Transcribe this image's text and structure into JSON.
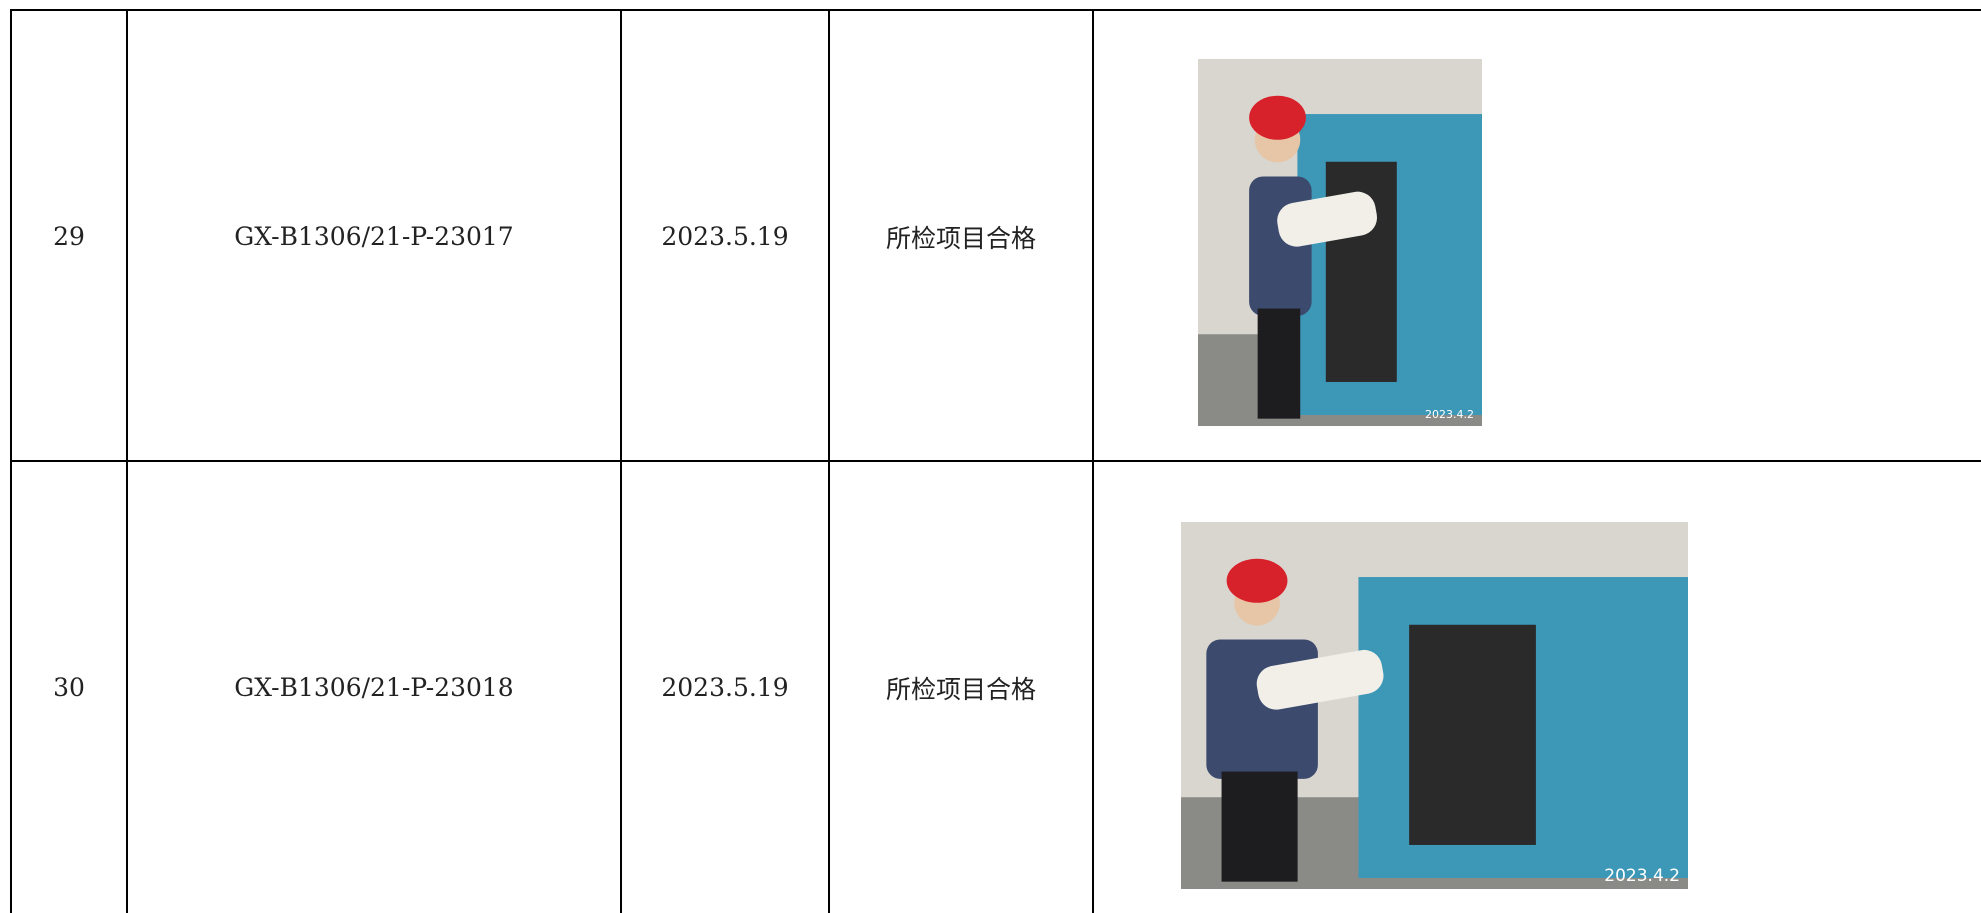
{
  "table": {
    "rows": [
      {
        "no": "29",
        "code": "GX-B1306/21-P-23017",
        "date": "2023.5.19",
        "result": "所检项目合格",
        "photo_stamp": "2023.4.2"
      },
      {
        "no": "30",
        "code": "GX-B1306/21-P-23018",
        "date": "2023.5.19",
        "result": "所检项目合格",
        "photo_stamp": "2023.4.2"
      }
    ]
  }
}
